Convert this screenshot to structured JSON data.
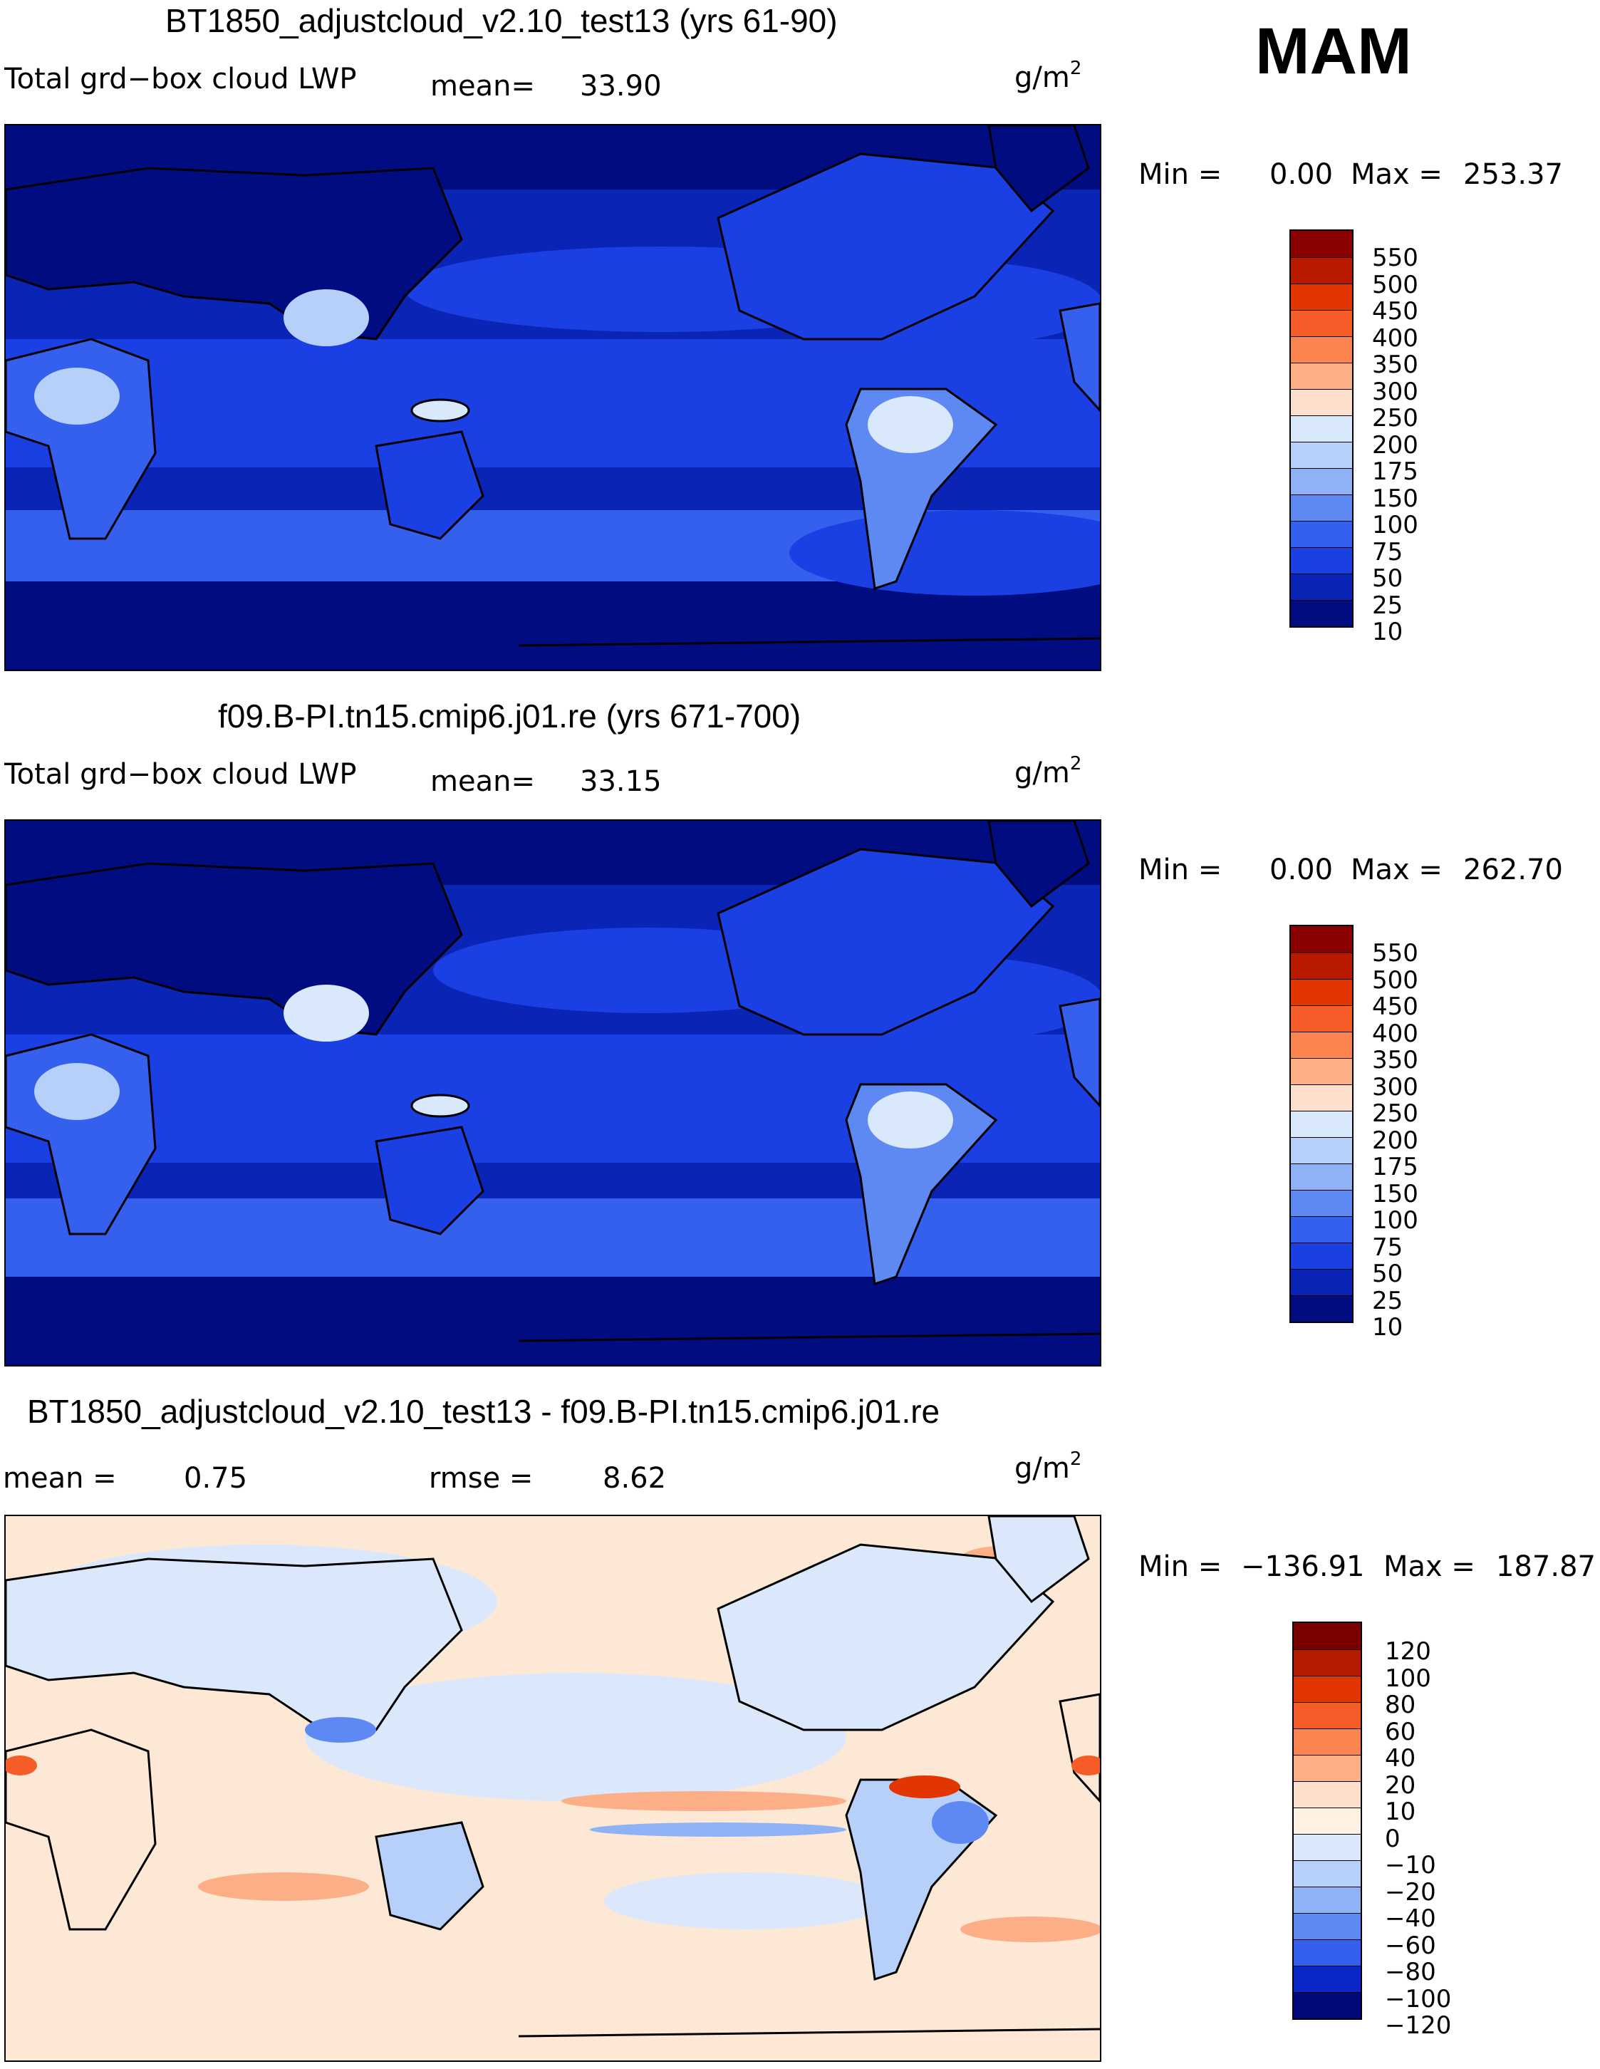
{
  "season": "MAM",
  "units_base": "g/m",
  "units_exp": "2",
  "colorbar_levels": [
    "550",
    "500",
    "450",
    "400",
    "350",
    "300",
    "250",
    "200",
    "175",
    "150",
    "100",
    "75",
    "50",
    "25",
    "10"
  ],
  "colorbar_colors": [
    "#8b0000",
    "#b81a00",
    "#e33500",
    "#f65c28",
    "#fb8550",
    "#fcae86",
    "#fde0cb",
    "#d9e8fb",
    "#b6d0fa",
    "#8fb2f7",
    "#5e89f2",
    "#3560ee",
    "#1a3fe3",
    "#0a25b5",
    "#000c80"
  ],
  "diff_levels": [
    "120",
    "100",
    "80",
    "60",
    "40",
    "20",
    "10",
    "0",
    "−10",
    "−20",
    "−40",
    "−60",
    "−80",
    "−100",
    "−120"
  ],
  "diff_colors": [
    "#7a0000",
    "#b41c00",
    "#e33500",
    "#f65c28",
    "#fb8550",
    "#fcae86",
    "#fde0cb",
    "#fff0e2",
    "#dbe8fb",
    "#b6d0fa",
    "#8fb2f7",
    "#5e89f2",
    "#3560ee",
    "#0a25c8",
    "#00097a"
  ],
  "panels": [
    {
      "title": "BT1850_adjustcloud_v2.10_test13 (yrs 61-90)",
      "variable": "Total grd−box cloud LWP",
      "mean_label": "mean=",
      "mean_value": "33.90",
      "min_label": "Min  =",
      "min_value": "0.00",
      "max_label": "Max  =",
      "max_value": "253.37"
    },
    {
      "title": "f09.B-PI.tn15.cmip6.j01.re (yrs 671-700)",
      "variable": "Total grd−box cloud LWP",
      "mean_label": "mean=",
      "mean_value": "33.15",
      "min_label": "Min  =",
      "min_value": "0.00",
      "max_label": "Max  =",
      "max_value": "262.70"
    },
    {
      "title": "BT1850_adjustcloud_v2.10_test13 - f09.B-PI.tn15.cmip6.j01.re",
      "mean_label": "mean  =",
      "mean_value": "0.75",
      "rmse_label": "rmse  =",
      "rmse_value": "8.62",
      "min_label": "Min  =",
      "min_value": "−136.91",
      "max_label": "Max  =",
      "max_value": "187.87"
    }
  ]
}
